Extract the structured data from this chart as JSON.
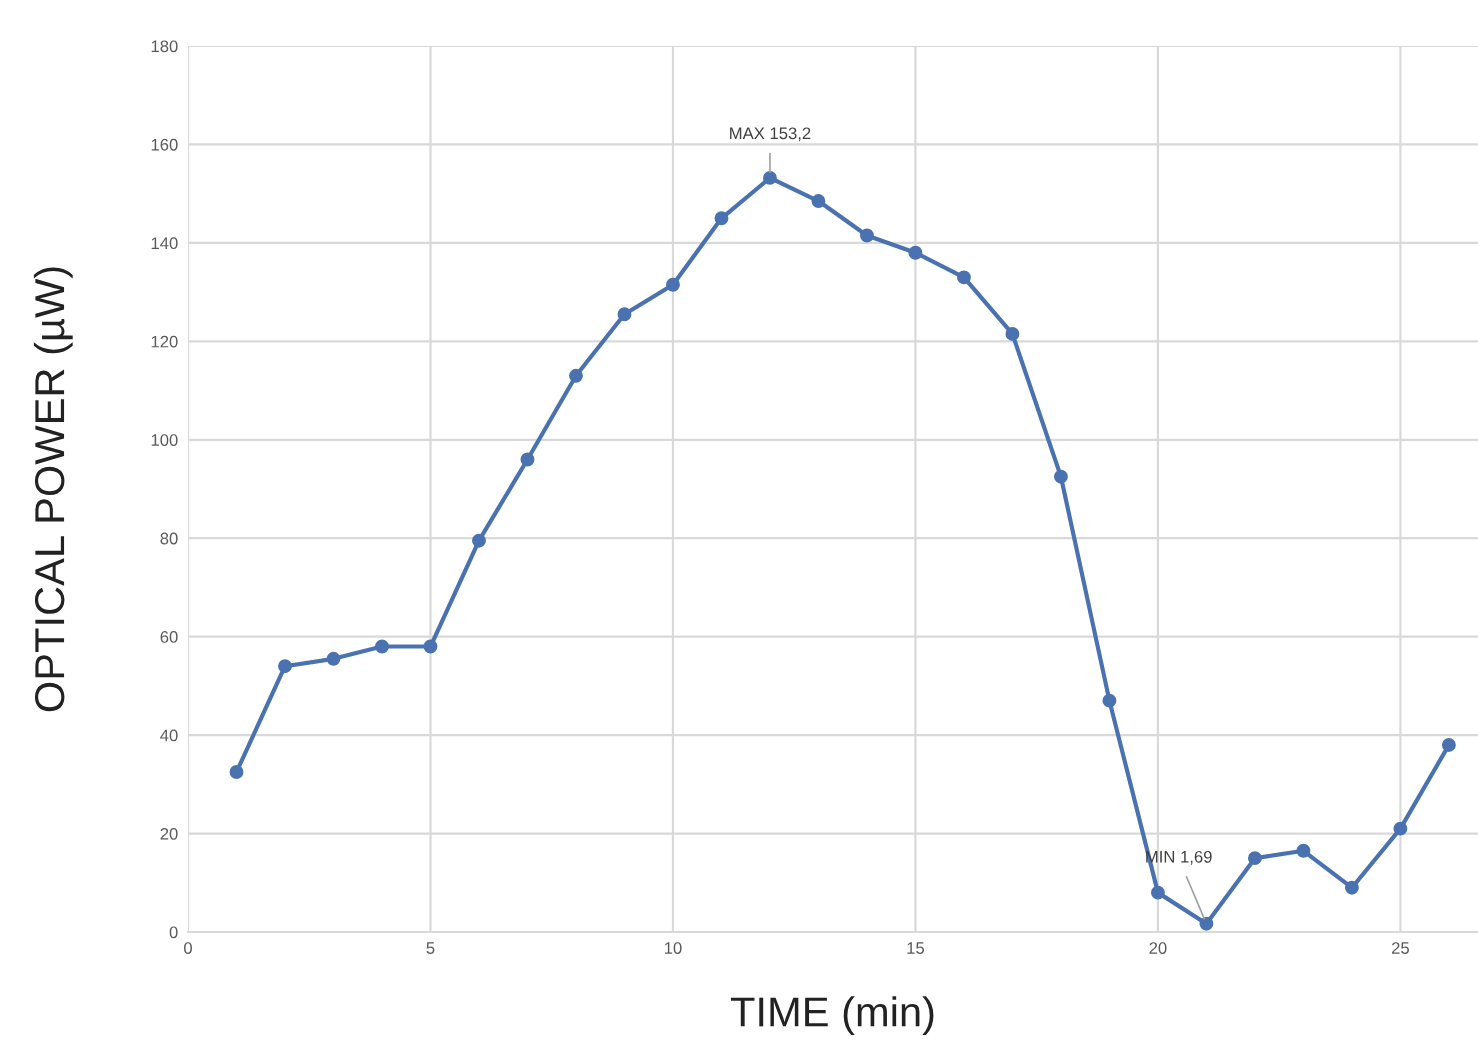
{
  "chart_data": {
    "type": "line",
    "xlabel": "TIME (min)",
    "ylabel": "OPTICAL POWER (µW)",
    "x": [
      1,
      2,
      3,
      4,
      5,
      6,
      7,
      8,
      9,
      10,
      11,
      12,
      13,
      14,
      15,
      16,
      17,
      18,
      19,
      20,
      21,
      22,
      23,
      24,
      25,
      26
    ],
    "series": [
      {
        "color": "#4a72b0",
        "values": [
          32.5,
          54,
          55.5,
          58,
          58,
          79.5,
          96,
          113,
          125.5,
          131.5,
          145,
          153.2,
          148.5,
          141.5,
          138,
          133,
          121.5,
          92.5,
          47,
          8,
          1.69,
          15,
          16.5,
          9,
          21,
          38
        ]
      }
    ],
    "xlim": [
      0,
      26.6
    ],
    "xticks": [
      0,
      5,
      10,
      15,
      20,
      25
    ],
    "ylim": [
      0,
      180
    ],
    "yticks": [
      0,
      20,
      40,
      60,
      80,
      100,
      120,
      140,
      160,
      180
    ],
    "grid": true,
    "marker": "circle",
    "line_style": "solid",
    "annotations": [
      {
        "text": "MAX 153,2",
        "x": 12,
        "y": 153.2
      },
      {
        "text": "MIN 1,69",
        "x": 21,
        "y": 1.69
      }
    ]
  }
}
